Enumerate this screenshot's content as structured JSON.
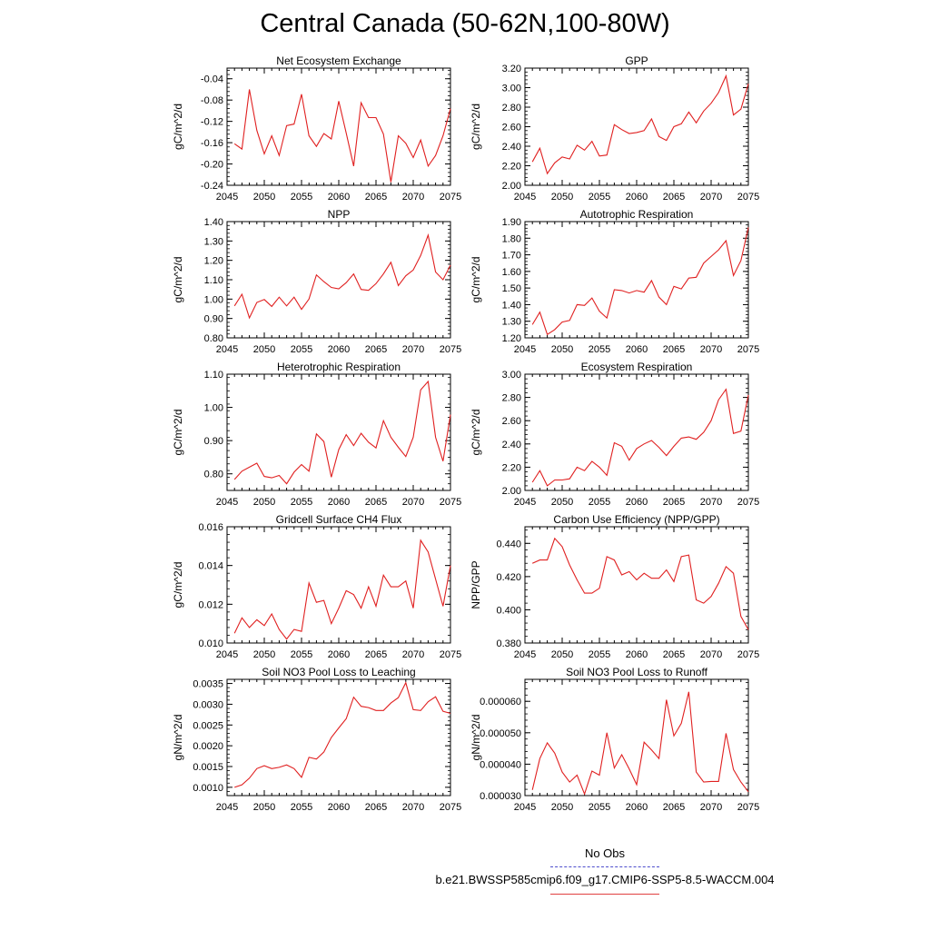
{
  "title": "Central Canada (50-62N,100-80W)",
  "legend": {
    "obs_label": "No Obs",
    "model_label": "b.e21.BWSSP585cmip6.f09_g17.CMIP6-SSP5-8.5-WACCM.004",
    "obs_color": "#4d4dcc",
    "model_color": "#e04040"
  },
  "line_color": "#e02020",
  "chart_data": [
    {
      "type": "line",
      "title": "Net Ecosystem Exchange",
      "xlabel": "",
      "ylabel": "gC/m^2/d",
      "xlim": [
        2045,
        2075
      ],
      "ylim": [
        -0.24,
        -0.02
      ],
      "xticks": [
        "2045",
        "2050",
        "2055",
        "2060",
        "2065",
        "2070",
        "2075"
      ],
      "yticks": [
        "-0.24",
        "-0.20",
        "-0.16",
        "-0.12",
        "-0.08",
        "-0.04"
      ],
      "x": [
        2046,
        2047,
        2048,
        2049,
        2050,
        2051,
        2052,
        2053,
        2054,
        2055,
        2056,
        2057,
        2058,
        2059,
        2060,
        2061,
        2062,
        2063,
        2064,
        2065,
        2066,
        2067,
        2068,
        2069,
        2070,
        2071,
        2072,
        2073,
        2074,
        2075
      ],
      "y": [
        -0.162,
        -0.172,
        -0.06,
        -0.137,
        -0.181,
        -0.147,
        -0.184,
        -0.128,
        -0.125,
        -0.069,
        -0.147,
        -0.167,
        -0.143,
        -0.153,
        -0.082,
        -0.142,
        -0.204,
        -0.085,
        -0.113,
        -0.113,
        -0.144,
        -0.234,
        -0.147,
        -0.161,
        -0.188,
        -0.155,
        -0.204,
        -0.184,
        -0.147,
        -0.096
      ]
    },
    {
      "type": "line",
      "title": "GPP",
      "xlabel": "",
      "ylabel": "gC/m^2/d",
      "xlim": [
        2045,
        2075
      ],
      "ylim": [
        2.0,
        3.2
      ],
      "xticks": [
        "2045",
        "2050",
        "2055",
        "2060",
        "2065",
        "2070",
        "2075"
      ],
      "yticks": [
        "2.00",
        "2.20",
        "2.40",
        "2.60",
        "2.80",
        "3.00",
        "3.20"
      ],
      "x": [
        2046,
        2047,
        2048,
        2049,
        2050,
        2051,
        2052,
        2053,
        2054,
        2055,
        2056,
        2057,
        2058,
        2059,
        2060,
        2061,
        2062,
        2063,
        2064,
        2065,
        2066,
        2067,
        2068,
        2069,
        2070,
        2071,
        2072,
        2073,
        2074,
        2075
      ],
      "y": [
        2.24,
        2.38,
        2.12,
        2.23,
        2.29,
        2.27,
        2.41,
        2.36,
        2.45,
        2.3,
        2.31,
        2.62,
        2.57,
        2.53,
        2.54,
        2.56,
        2.68,
        2.5,
        2.46,
        2.6,
        2.63,
        2.75,
        2.64,
        2.76,
        2.84,
        2.95,
        3.12,
        2.72,
        2.78,
        3.04
      ]
    },
    {
      "type": "line",
      "title": "NPP",
      "xlabel": "",
      "ylabel": "gC/m^2/d",
      "xlim": [
        2045,
        2075
      ],
      "ylim": [
        0.8,
        1.4
      ],
      "xticks": [
        "2045",
        "2050",
        "2055",
        "2060",
        "2065",
        "2070",
        "2075"
      ],
      "yticks": [
        "0.80",
        "0.90",
        "1.00",
        "1.10",
        "1.20",
        "1.30",
        "1.40"
      ],
      "x": [
        2046,
        2047,
        2048,
        2049,
        2050,
        2051,
        2052,
        2053,
        2054,
        2055,
        2056,
        2057,
        2058,
        2059,
        2060,
        2061,
        2062,
        2063,
        2064,
        2065,
        2066,
        2067,
        2068,
        2069,
        2070,
        2071,
        2072,
        2073,
        2074,
        2075
      ],
      "y": [
        0.965,
        1.025,
        0.903,
        0.983,
        0.998,
        0.962,
        1.01,
        0.965,
        1.01,
        0.947,
        1.0,
        1.125,
        1.09,
        1.06,
        1.053,
        1.085,
        1.13,
        1.05,
        1.045,
        1.08,
        1.13,
        1.19,
        1.07,
        1.12,
        1.15,
        1.225,
        1.33,
        1.14,
        1.1,
        1.175
      ]
    },
    {
      "type": "line",
      "title": "Autotrophic Respiration",
      "xlabel": "",
      "ylabel": "gC/m^2/d",
      "xlim": [
        2045,
        2075
      ],
      "ylim": [
        1.2,
        1.9
      ],
      "xticks": [
        "2045",
        "2050",
        "2055",
        "2060",
        "2065",
        "2070",
        "2075"
      ],
      "yticks": [
        "1.20",
        "1.30",
        "1.40",
        "1.50",
        "1.60",
        "1.70",
        "1.80",
        "1.90"
      ],
      "x": [
        2046,
        2047,
        2048,
        2049,
        2050,
        2051,
        2052,
        2053,
        2054,
        2055,
        2056,
        2057,
        2058,
        2059,
        2060,
        2061,
        2062,
        2063,
        2064,
        2065,
        2066,
        2067,
        2068,
        2069,
        2070,
        2071,
        2072,
        2073,
        2074,
        2075
      ],
      "y": [
        1.28,
        1.355,
        1.22,
        1.25,
        1.295,
        1.305,
        1.4,
        1.395,
        1.44,
        1.36,
        1.32,
        1.49,
        1.485,
        1.47,
        1.485,
        1.475,
        1.545,
        1.445,
        1.4,
        1.51,
        1.495,
        1.56,
        1.565,
        1.65,
        1.69,
        1.73,
        1.785,
        1.575,
        1.665,
        1.865
      ]
    },
    {
      "type": "line",
      "title": "Heterotrophic Respiration",
      "xlabel": "",
      "ylabel": "gC/m^2/d",
      "xlim": [
        2045,
        2075
      ],
      "ylim": [
        0.75,
        1.1
      ],
      "xticks": [
        "2045",
        "2050",
        "2055",
        "2060",
        "2065",
        "2070",
        "2075"
      ],
      "yticks": [
        "0.80",
        "0.90",
        "1.00",
        "1.10"
      ],
      "x": [
        2046,
        2047,
        2048,
        2049,
        2050,
        2051,
        2052,
        2053,
        2054,
        2055,
        2056,
        2057,
        2058,
        2059,
        2060,
        2061,
        2062,
        2063,
        2064,
        2065,
        2066,
        2067,
        2068,
        2069,
        2070,
        2071,
        2072,
        2073,
        2074,
        2075
      ],
      "y": [
        0.783,
        0.808,
        0.82,
        0.832,
        0.792,
        0.788,
        0.795,
        0.77,
        0.805,
        0.828,
        0.808,
        0.92,
        0.897,
        0.79,
        0.873,
        0.918,
        0.885,
        0.922,
        0.895,
        0.878,
        0.96,
        0.91,
        0.88,
        0.852,
        0.91,
        1.053,
        1.078,
        0.91,
        0.838,
        0.978
      ]
    },
    {
      "type": "line",
      "title": "Ecosystem Respiration",
      "xlabel": "",
      "ylabel": "gC/m^2/d",
      "xlim": [
        2045,
        2075
      ],
      "ylim": [
        2.0,
        3.0
      ],
      "xticks": [
        "2045",
        "2050",
        "2055",
        "2060",
        "2065",
        "2070",
        "2075"
      ],
      "yticks": [
        "2.00",
        "2.20",
        "2.40",
        "2.60",
        "2.80",
        "3.00"
      ],
      "x": [
        2046,
        2047,
        2048,
        2049,
        2050,
        2051,
        2052,
        2053,
        2054,
        2055,
        2056,
        2057,
        2058,
        2059,
        2060,
        2061,
        2062,
        2063,
        2064,
        2065,
        2066,
        2067,
        2068,
        2069,
        2070,
        2071,
        2072,
        2073,
        2074,
        2075
      ],
      "y": [
        2.07,
        2.17,
        2.04,
        2.09,
        2.09,
        2.1,
        2.2,
        2.17,
        2.25,
        2.2,
        2.13,
        2.41,
        2.38,
        2.26,
        2.36,
        2.4,
        2.43,
        2.37,
        2.3,
        2.38,
        2.45,
        2.46,
        2.44,
        2.5,
        2.6,
        2.78,
        2.87,
        2.49,
        2.51,
        2.82
      ]
    },
    {
      "type": "line",
      "title": "Gridcell Surface CH4 Flux",
      "xlabel": "",
      "ylabel": "gC/m^2/d",
      "xlim": [
        2045,
        2075
      ],
      "ylim": [
        0.01,
        0.016
      ],
      "xticks": [
        "2045",
        "2050",
        "2055",
        "2060",
        "2065",
        "2070",
        "2075"
      ],
      "yticks": [
        "0.010",
        "0.012",
        "0.014",
        "0.016"
      ],
      "x": [
        2046,
        2047,
        2048,
        2049,
        2050,
        2051,
        2052,
        2053,
        2054,
        2055,
        2056,
        2057,
        2058,
        2059,
        2060,
        2061,
        2062,
        2063,
        2064,
        2065,
        2066,
        2067,
        2068,
        2069,
        2070,
        2071,
        2072,
        2073,
        2074,
        2075
      ],
      "y": [
        0.0105,
        0.0113,
        0.0108,
        0.0112,
        0.0109,
        0.0115,
        0.0107,
        0.0102,
        0.0107,
        0.0106,
        0.0131,
        0.0121,
        0.0122,
        0.011,
        0.0118,
        0.0127,
        0.0125,
        0.0118,
        0.0129,
        0.0119,
        0.0135,
        0.0129,
        0.0129,
        0.0132,
        0.0118,
        0.0153,
        0.0147,
        0.0133,
        0.0119,
        0.014
      ]
    },
    {
      "type": "line",
      "title": "Carbon Use Efficiency (NPP/GPP)",
      "xlabel": "",
      "ylabel": "NPP/GPP",
      "xlim": [
        2045,
        2075
      ],
      "ylim": [
        0.38,
        0.45
      ],
      "xticks": [
        "2045",
        "2050",
        "2055",
        "2060",
        "2065",
        "2070",
        "2075"
      ],
      "yticks": [
        "0.380",
        "0.400",
        "0.420",
        "0.440"
      ],
      "x": [
        2046,
        2047,
        2048,
        2049,
        2050,
        2051,
        2052,
        2053,
        2054,
        2055,
        2056,
        2057,
        2058,
        2059,
        2060,
        2061,
        2062,
        2063,
        2064,
        2065,
        2066,
        2067,
        2068,
        2069,
        2070,
        2071,
        2072,
        2073,
        2074,
        2075
      ],
      "y": [
        0.428,
        0.43,
        0.43,
        0.443,
        0.438,
        0.427,
        0.418,
        0.41,
        0.41,
        0.413,
        0.432,
        0.43,
        0.421,
        0.423,
        0.418,
        0.422,
        0.419,
        0.419,
        0.424,
        0.417,
        0.432,
        0.433,
        0.406,
        0.404,
        0.408,
        0.416,
        0.426,
        0.422,
        0.396,
        0.388
      ]
    },
    {
      "type": "line",
      "title": "Soil NO3 Pool Loss to Leaching",
      "xlabel": "",
      "ylabel": "gN/m^2/d",
      "xlim": [
        2045,
        2075
      ],
      "ylim": [
        0.0008,
        0.0036
      ],
      "xticks": [
        "2045",
        "2050",
        "2055",
        "2060",
        "2065",
        "2070",
        "2075"
      ],
      "yticks": [
        "0.0010",
        "0.0015",
        "0.0020",
        "0.0025",
        "0.0030",
        "0.0035"
      ],
      "x": [
        2046,
        2047,
        2048,
        2049,
        2050,
        2051,
        2052,
        2053,
        2054,
        2055,
        2056,
        2057,
        2058,
        2059,
        2060,
        2061,
        2062,
        2063,
        2064,
        2065,
        2066,
        2067,
        2068,
        2069,
        2070,
        2071,
        2072,
        2073,
        2074,
        2075
      ],
      "y": [
        0.001,
        0.00106,
        0.00122,
        0.00145,
        0.00152,
        0.00145,
        0.00148,
        0.00154,
        0.00145,
        0.00124,
        0.00172,
        0.00168,
        0.00185,
        0.0022,
        0.00243,
        0.00265,
        0.00317,
        0.00295,
        0.00292,
        0.00285,
        0.00285,
        0.00303,
        0.00316,
        0.00352,
        0.00287,
        0.00285,
        0.00306,
        0.00318,
        0.00283,
        0.00278
      ]
    },
    {
      "type": "line",
      "title": "Soil NO3 Pool Loss to Runoff",
      "xlabel": "",
      "ylabel": "gN/m^2/d",
      "xlim": [
        2045,
        2075
      ],
      "ylim": [
        3e-05,
        6.7e-05
      ],
      "xticks": [
        "2045",
        "2050",
        "2055",
        "2060",
        "2065",
        "2070",
        "2075"
      ],
      "yticks": [
        "0.000030",
        "0.000040",
        "0.000050",
        "0.000060"
      ],
      "x": [
        2046,
        2047,
        2048,
        2049,
        2050,
        2051,
        2052,
        2053,
        2054,
        2055,
        2056,
        2057,
        2058,
        2059,
        2060,
        2061,
        2062,
        2063,
        2064,
        2065,
        2066,
        2067,
        2068,
        2069,
        2070,
        2071,
        2072,
        2073,
        2074,
        2075
      ],
      "y": [
        3.18e-05,
        4.18e-05,
        4.68e-05,
        4.35e-05,
        3.75e-05,
        3.43e-05,
        3.65e-05,
        3.05e-05,
        3.78e-05,
        3.65e-05,
        5e-05,
        3.88e-05,
        4.3e-05,
        3.85e-05,
        3.35e-05,
        4.7e-05,
        4.45e-05,
        4.18e-05,
        6.05e-05,
        4.9e-05,
        5.3e-05,
        6.3e-05,
        3.75e-05,
        3.43e-05,
        3.45e-05,
        3.45e-05,
        4.98e-05,
        3.83e-05,
        3.43e-05,
        3.12e-05
      ]
    }
  ]
}
